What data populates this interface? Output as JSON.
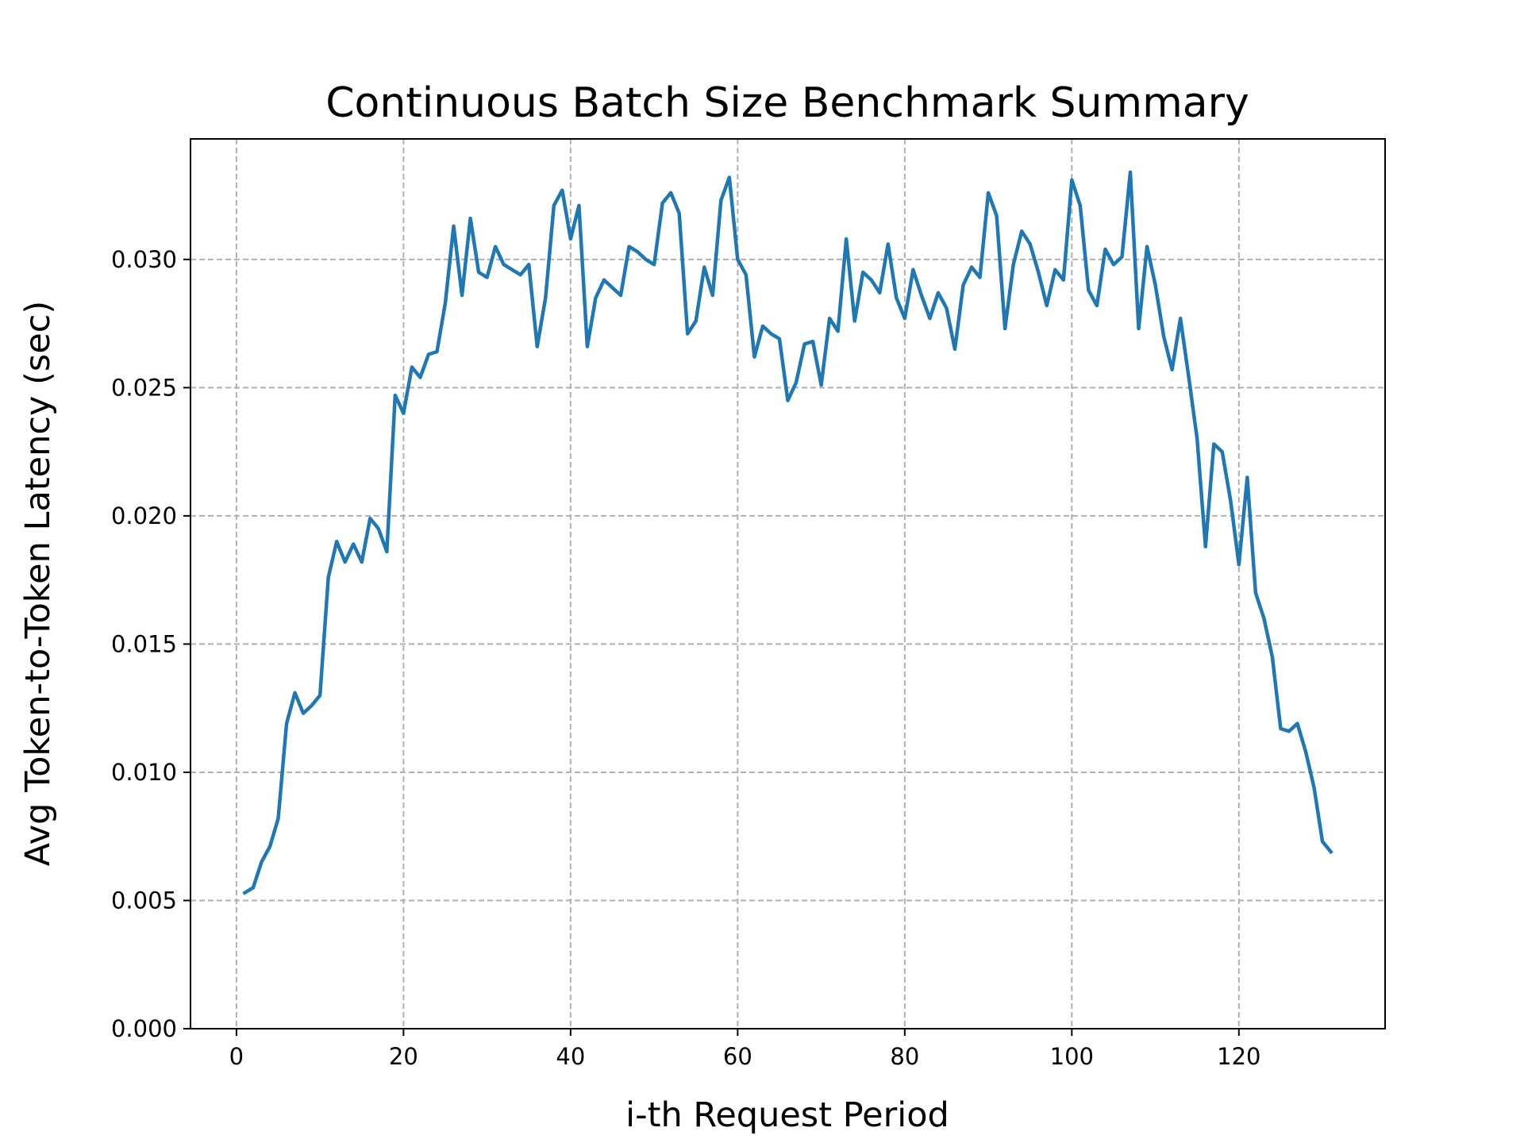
{
  "chart_data": {
    "type": "line",
    "title": "Continuous Batch Size Benchmark Summary",
    "xlabel": "i-th Request Period",
    "ylabel": "Avg Token-to-Token Latency (sec)",
    "xlim": [
      -5.5,
      137.5
    ],
    "ylim": [
      0.0,
      0.0347
    ],
    "xticks": [
      0,
      20,
      40,
      60,
      80,
      100,
      120
    ],
    "xtick_labels": [
      "0",
      "20",
      "40",
      "60",
      "80",
      "100",
      "120"
    ],
    "yticks": [
      0.0,
      0.005,
      0.01,
      0.015,
      0.02,
      0.025,
      0.03
    ],
    "ytick_labels": [
      "0.000",
      "0.005",
      "0.010",
      "0.015",
      "0.020",
      "0.025",
      "0.030"
    ],
    "grid": true,
    "line_color": "#1f77b4",
    "series": [
      {
        "x": [
          1,
          2,
          3,
          4,
          5,
          6,
          7,
          8,
          9,
          10,
          11,
          12,
          13,
          14,
          15,
          16,
          17,
          18,
          19,
          20,
          21,
          22,
          23,
          24,
          25,
          26,
          27,
          28,
          29,
          30,
          31,
          32,
          33,
          34,
          35,
          36,
          37,
          38,
          39,
          40,
          41,
          42,
          43,
          44,
          45,
          46,
          47,
          48,
          49,
          50,
          51,
          52,
          53,
          54,
          55,
          56,
          57,
          58,
          59,
          60,
          61,
          62,
          63,
          64,
          65,
          66,
          67,
          68,
          69,
          70,
          71,
          72,
          73,
          74,
          75,
          76,
          77,
          78,
          79,
          80,
          81,
          82,
          83,
          84,
          85,
          86,
          87,
          88,
          89,
          90,
          91,
          92,
          93,
          94,
          95,
          96,
          97,
          98,
          99,
          100,
          101,
          102,
          103,
          104,
          105,
          106,
          107,
          108,
          109,
          110,
          111,
          112,
          113,
          114,
          115,
          116,
          117,
          118,
          119,
          120,
          121,
          122,
          123,
          124,
          125,
          126,
          127,
          128,
          129,
          130,
          131
        ],
        "values": [
          0.0053,
          0.0055,
          0.0065,
          0.0071,
          0.0082,
          0.0119,
          0.0131,
          0.0123,
          0.0126,
          0.013,
          0.0176,
          0.019,
          0.0182,
          0.0189,
          0.0182,
          0.0199,
          0.0195,
          0.0186,
          0.0247,
          0.024,
          0.0258,
          0.0254,
          0.0263,
          0.0264,
          0.0283,
          0.0313,
          0.0286,
          0.0316,
          0.0295,
          0.0293,
          0.0305,
          0.0298,
          0.0296,
          0.0294,
          0.0298,
          0.0266,
          0.0285,
          0.0321,
          0.0327,
          0.0308,
          0.0321,
          0.0266,
          0.0285,
          0.0292,
          0.0289,
          0.0286,
          0.0305,
          0.0303,
          0.03,
          0.0298,
          0.0322,
          0.0326,
          0.0318,
          0.0271,
          0.0276,
          0.0297,
          0.0286,
          0.0323,
          0.0332,
          0.03,
          0.0294,
          0.0262,
          0.0274,
          0.0271,
          0.0269,
          0.0245,
          0.0252,
          0.0267,
          0.0268,
          0.0251,
          0.0277,
          0.0272,
          0.0308,
          0.0276,
          0.0295,
          0.0292,
          0.0287,
          0.0306,
          0.0285,
          0.0277,
          0.0296,
          0.0286,
          0.0277,
          0.0287,
          0.0281,
          0.0265,
          0.029,
          0.0297,
          0.0293,
          0.0326,
          0.0317,
          0.0273,
          0.0298,
          0.0311,
          0.0306,
          0.0295,
          0.0282,
          0.0296,
          0.0292,
          0.0331,
          0.0321,
          0.0288,
          0.0282,
          0.0304,
          0.0298,
          0.0301,
          0.0334,
          0.0273,
          0.0305,
          0.029,
          0.027,
          0.0257,
          0.0277,
          0.0254,
          0.023,
          0.0188,
          0.0228,
          0.0225,
          0.0206,
          0.0181,
          0.0215,
          0.017,
          0.016,
          0.0145,
          0.0117,
          0.0116,
          0.0119,
          0.0108,
          0.0094,
          0.0073,
          0.0069
        ]
      }
    ]
  }
}
